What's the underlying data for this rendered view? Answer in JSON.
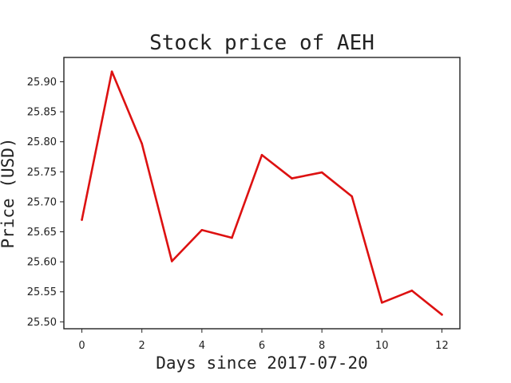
{
  "chart_data": {
    "type": "line",
    "title": "Stock price of AEH",
    "xlabel": "Days since 2017-07-20",
    "ylabel": "Price (USD)",
    "x": [
      0,
      1,
      2,
      3,
      4,
      5,
      6,
      7,
      8,
      9,
      10,
      11,
      12
    ],
    "series": [
      {
        "values": [
          25.67,
          25.917,
          25.797,
          25.601,
          25.653,
          25.64,
          25.778,
          25.739,
          25.749,
          25.709,
          25.532,
          25.552,
          25.512
        ],
        "color": "#dd1111"
      }
    ],
    "xlim": [
      -0.6,
      12.6
    ],
    "ylim": [
      25.4885,
      25.9405
    ],
    "xticks": [
      0,
      2,
      4,
      6,
      8,
      10,
      12
    ],
    "xtick_labels": [
      "0",
      "2",
      "4",
      "6",
      "8",
      "10",
      "12"
    ],
    "yticks": [
      25.5,
      25.55,
      25.6,
      25.65,
      25.7,
      25.75,
      25.8,
      25.85,
      25.9
    ],
    "ytick_labels": [
      "25.50",
      "25.55",
      "25.60",
      "25.65",
      "25.70",
      "25.75",
      "25.80",
      "25.85",
      "25.90"
    ],
    "grid": false,
    "legend": "none"
  }
}
